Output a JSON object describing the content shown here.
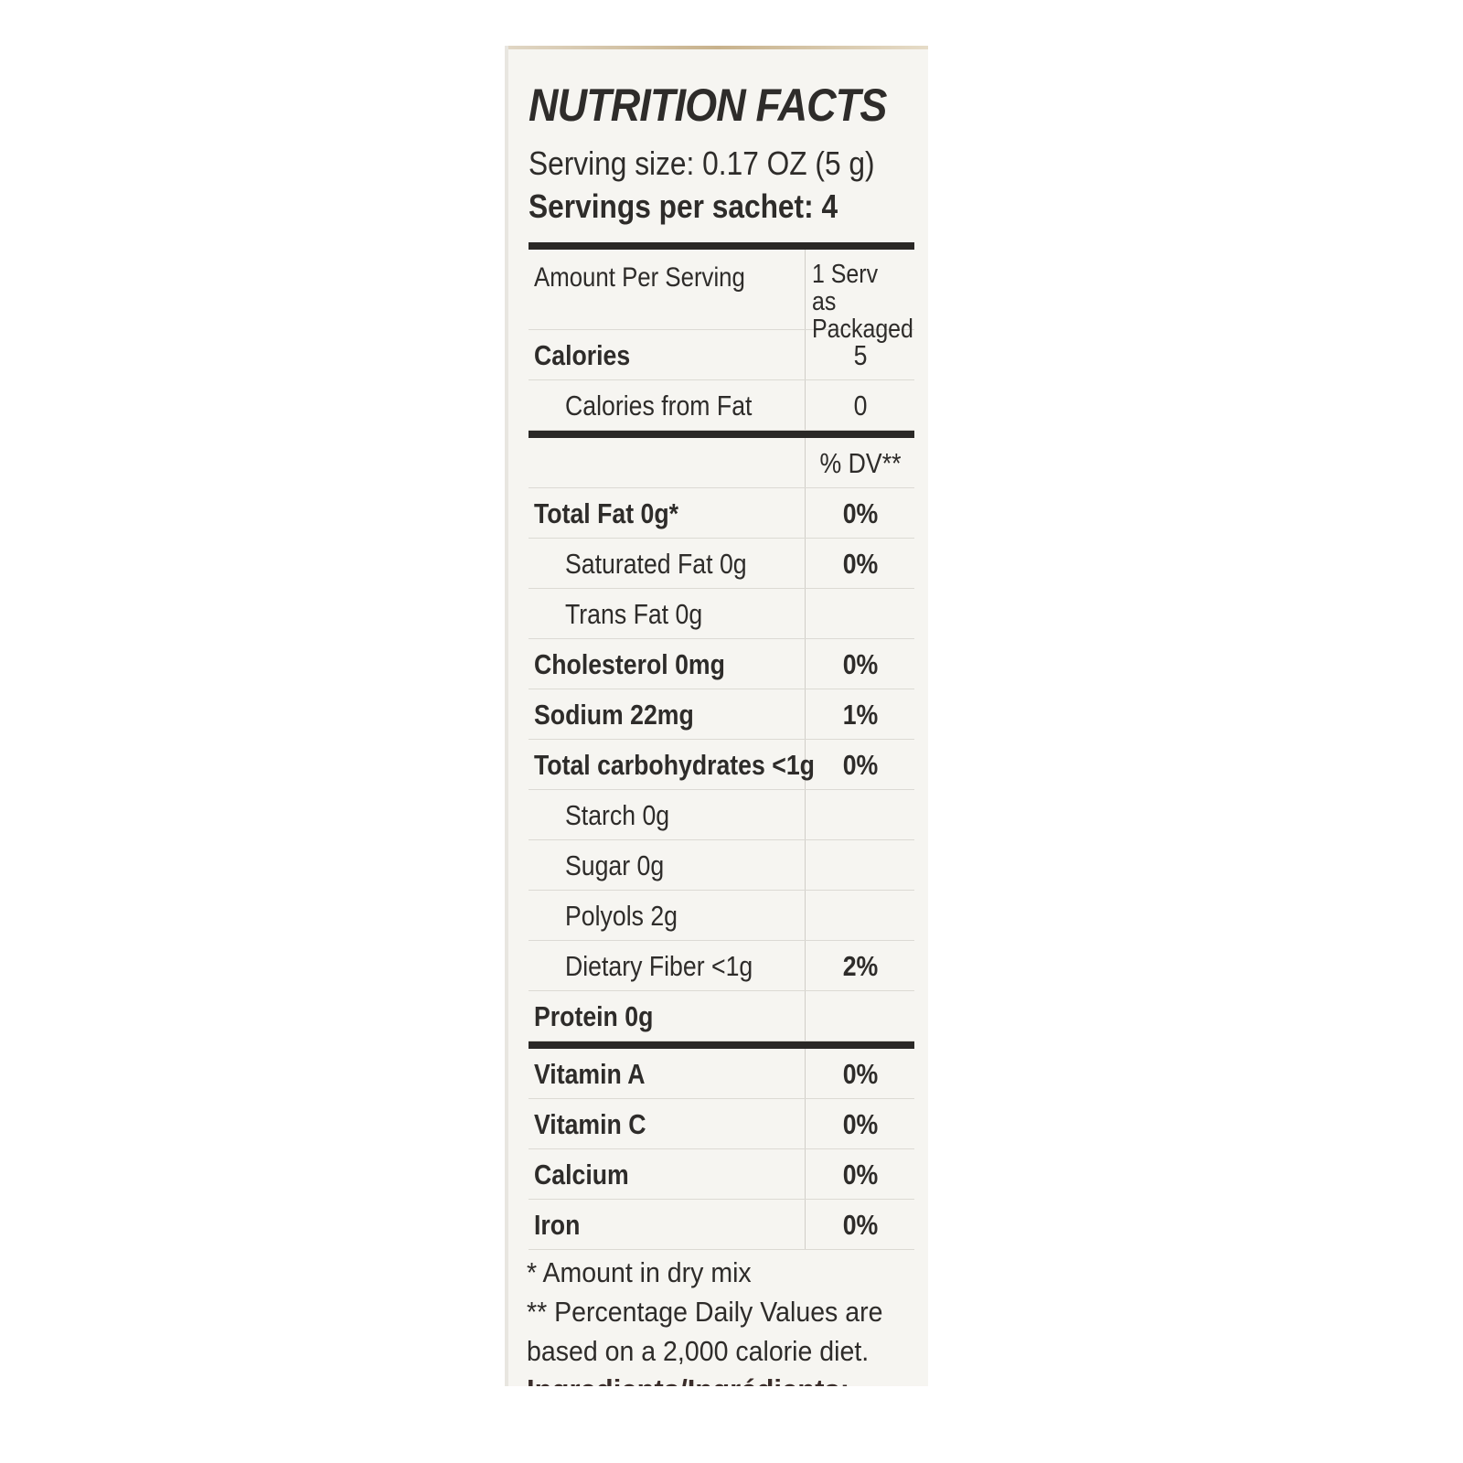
{
  "title": "NUTRITION FACTS",
  "serving_size": "Serving size: 0.17 OZ (5 g)",
  "servings_per": "Servings per sachet: 4",
  "header": {
    "label": "Amount Per Serving",
    "col1": "1 Serv as",
    "col2": "Packaged"
  },
  "calories": [
    {
      "label": "Calories",
      "value": "5",
      "bold": true,
      "indent": false
    },
    {
      "label": "Calories from Fat",
      "value": "0",
      "bold": false,
      "indent": true
    }
  ],
  "dv_header": "% DV**",
  "nutrients": [
    {
      "label": "Total Fat  0g*",
      "value": "0%",
      "bold": true,
      "indent": false
    },
    {
      "label": "Saturated Fat  0g",
      "value": "0%",
      "bold": false,
      "indent": true
    },
    {
      "label": "Trans Fat  0g",
      "value": "",
      "bold": false,
      "indent": true
    },
    {
      "label": "Cholesterol  0mg",
      "value": "0%",
      "bold": true,
      "indent": false
    },
    {
      "label": "Sodium  22mg",
      "value": "1%",
      "bold": true,
      "indent": false
    },
    {
      "label": "Total carbohydrates <1g",
      "value": "0%",
      "bold": true,
      "indent": false
    },
    {
      "label": "Starch  0g",
      "value": "",
      "bold": false,
      "indent": true
    },
    {
      "label": "Sugar  0g",
      "value": "",
      "bold": false,
      "indent": true
    },
    {
      "label": "Polyols  2g",
      "value": "",
      "bold": false,
      "indent": true
    },
    {
      "label": "Dietary Fiber  <1g",
      "value": "2%",
      "bold": false,
      "indent": true
    },
    {
      "label": "Protein  0g",
      "value": "",
      "bold": true,
      "indent": false
    }
  ],
  "vitamins": [
    {
      "label": "Vitamin A",
      "value": "0%"
    },
    {
      "label": "Vitamin C",
      "value": "0%"
    },
    {
      "label": "Calcium",
      "value": "0%"
    },
    {
      "label": "Iron",
      "value": "0%"
    }
  ],
  "footnotes": [
    "* Amount in dry mix",
    "** Percentage Daily Values are",
    "based on a 2,000 calorie diet."
  ],
  "ingredients_cut": "Ingredients/Ingrédients:"
}
